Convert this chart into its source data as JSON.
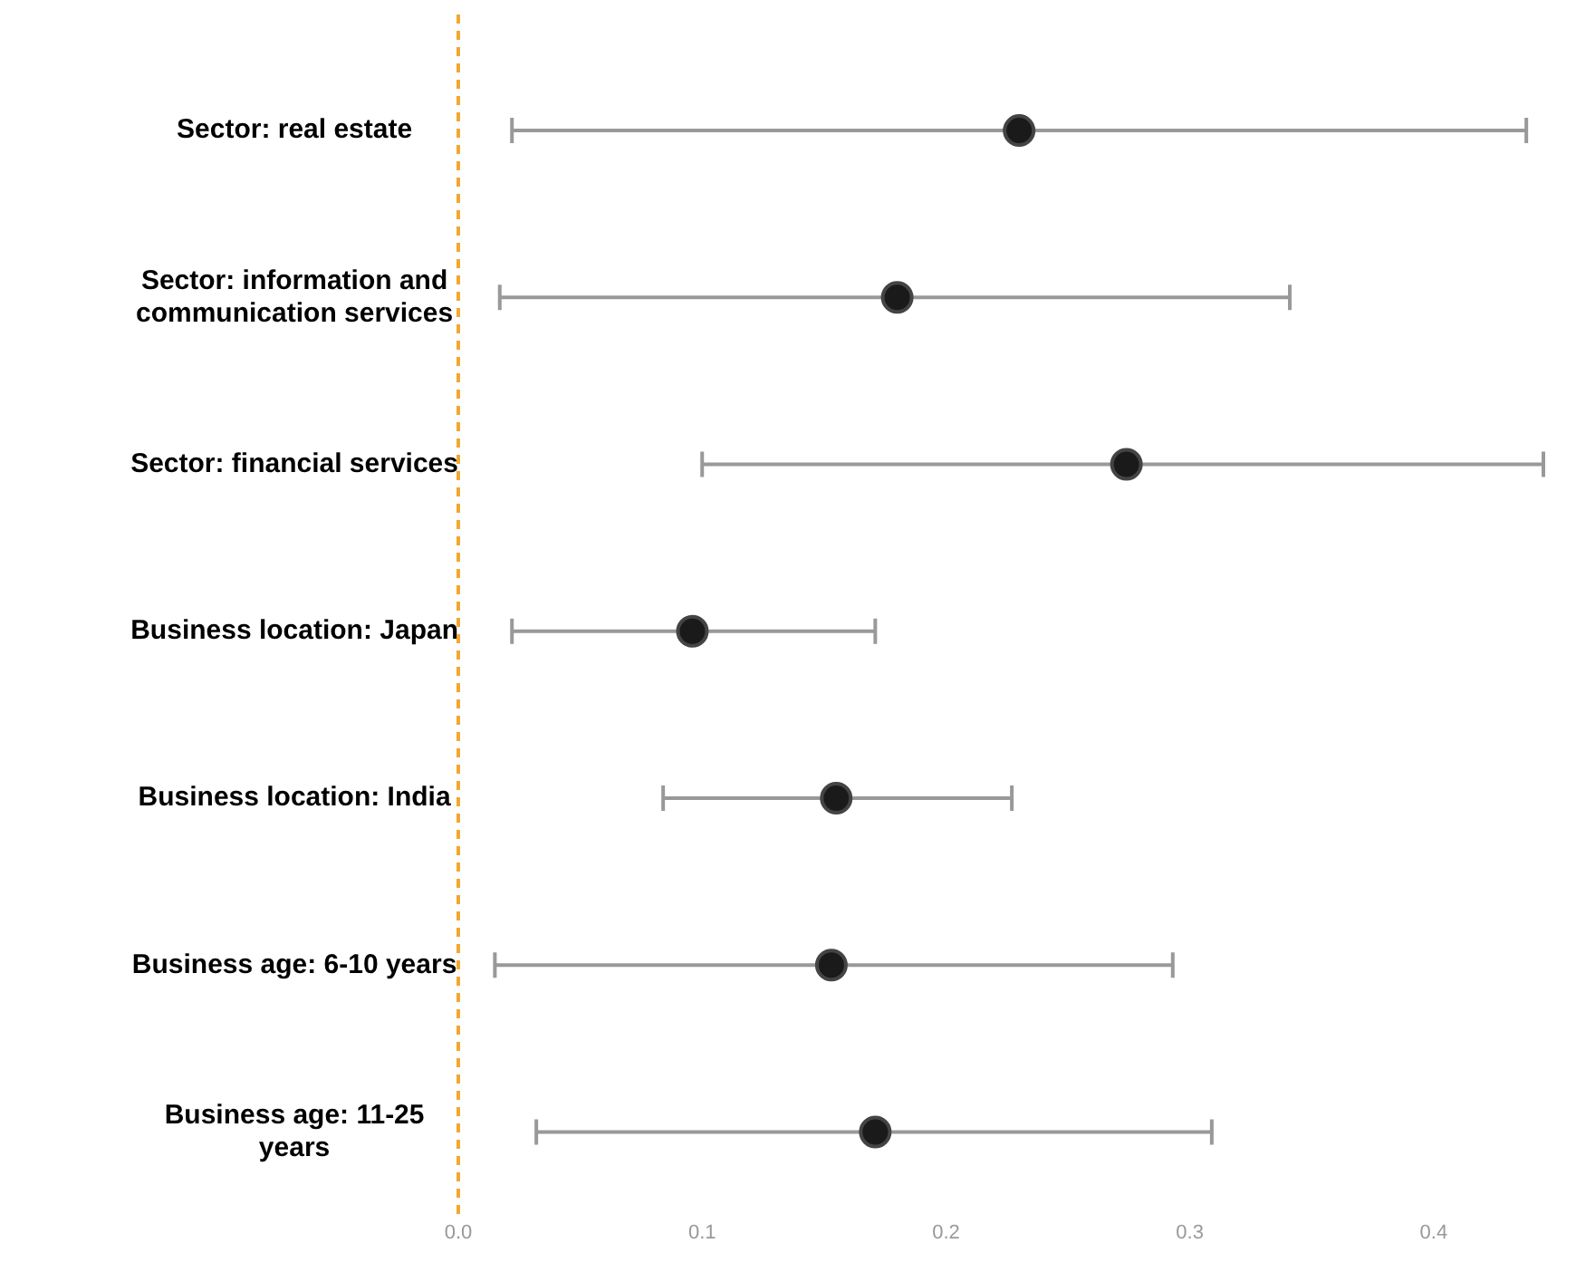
{
  "chart_data": {
    "type": "scatter",
    "orientation": "horizontal",
    "categories": [
      "Sector: real estate",
      "Sector: information and communication services",
      "Sector: financial services",
      "Business location: Japan",
      "Business location: India",
      "Business age: 6-10 years",
      "Business age: 11-25 years"
    ],
    "values": [
      0.23,
      0.18,
      0.274,
      0.096,
      0.155,
      0.153,
      0.171
    ],
    "errors": [
      [
        0.022,
        0.438
      ],
      [
        0.017,
        0.341
      ],
      [
        0.1,
        0.445
      ],
      [
        0.022,
        0.171
      ],
      [
        0.084,
        0.227
      ],
      [
        0.015,
        0.293
      ],
      [
        0.032,
        0.309
      ]
    ],
    "color": "#1a1a1a",
    "marker": "circle",
    "grid": false,
    "legend": false,
    "xlim": [
      0,
      0.445
    ],
    "xticks": [
      {
        "value": 0,
        "label": "0.0"
      },
      {
        "value": 0.1,
        "label": "0.1"
      },
      {
        "value": 0.2,
        "label": "0.2"
      },
      {
        "value": 0.3,
        "label": "0.3"
      },
      {
        "value": 0.4,
        "label": "0.4"
      }
    ],
    "ref_lines": [
      {
        "axis": "x",
        "value": 0,
        "color": "#f0a830",
        "line_style": "dashed"
      }
    ]
  }
}
